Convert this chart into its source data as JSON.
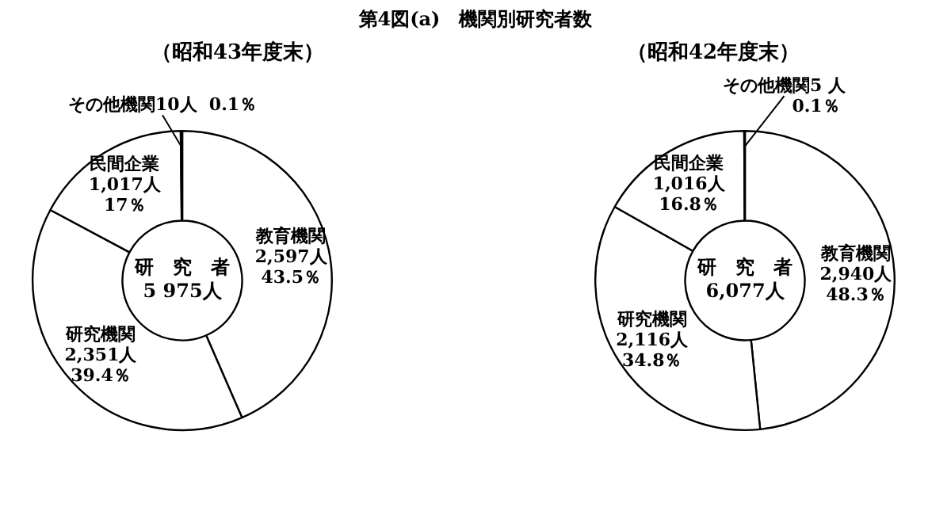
{
  "chart_data": [
    {
      "type": "donut",
      "title": "第4図(a)　機関別研究者数",
      "subtitle": "（昭和43年度末）",
      "categories": [
        "教育機関",
        "研究機関",
        "民間企業",
        "その他機関"
      ],
      "values": [
        2597,
        2351,
        1017,
        10
      ],
      "value_labels": [
        "2,597人\n43.5％",
        "2,351人\n39.4％",
        "1,017人\n17％",
        "10人  0.1％"
      ],
      "colors": [
        "#ffffff",
        "#ffffff",
        "#ffffff",
        "#ffffff"
      ],
      "annotations": [
        "研　究　者\n5 975人"
      ],
      "legend": false
    },
    {
      "type": "donut",
      "subtitle": "（昭和42年度末）",
      "categories": [
        "教育機関",
        "研究機関",
        "民間企業",
        "その他機関"
      ],
      "values": [
        2940,
        2116,
        1016,
        5
      ],
      "value_labels": [
        "2,940人\n48.3％",
        "2,116人\n34.8％",
        "1,016人\n16.8％",
        "5 人\n0.1％"
      ],
      "colors": [
        "#ffffff",
        "#ffffff",
        "#ffffff",
        "#ffffff"
      ],
      "annotations": [
        "研　究　者\n6,077人"
      ],
      "legend": false
    }
  ]
}
